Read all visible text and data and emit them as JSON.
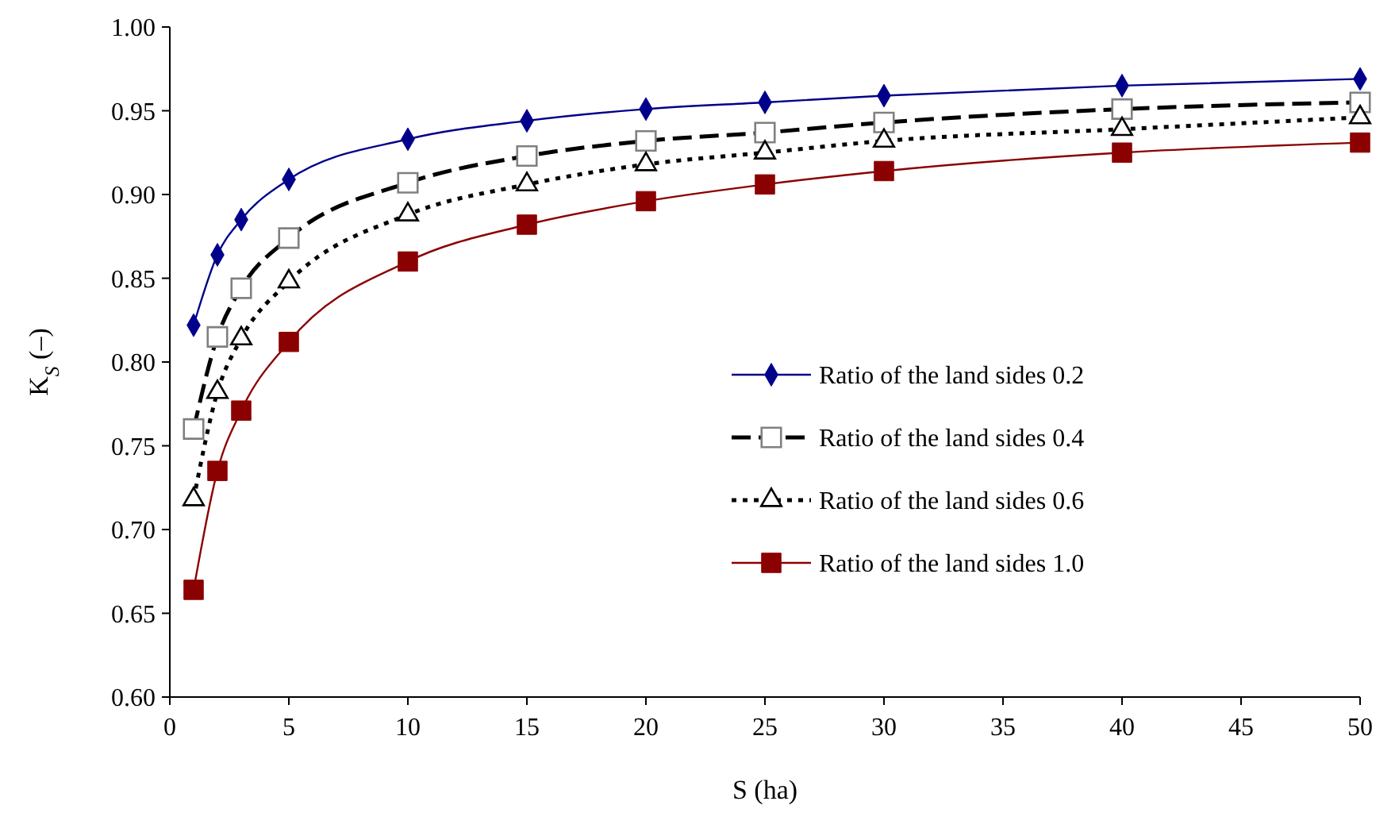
{
  "chart_data": {
    "type": "line",
    "xlabel": "S (ha)",
    "ylabel": "K$_{S}$ (–)",
    "x": [
      1,
      2,
      3,
      5,
      10,
      15,
      20,
      25,
      30,
      40,
      50
    ],
    "xlim": [
      0,
      50
    ],
    "xticks": [
      0,
      5,
      10,
      15,
      20,
      25,
      30,
      35,
      40,
      45,
      50
    ],
    "ylim": [
      0.6,
      1.0
    ],
    "yticks": [
      {
        "value": 0.6,
        "label": "0.60"
      },
      {
        "value": 0.65,
        "label": "0.65"
      },
      {
        "value": 0.7,
        "label": "0.70"
      },
      {
        "value": 0.75,
        "label": "0.75"
      },
      {
        "value": 0.8,
        "label": "0.80"
      },
      {
        "value": 0.85,
        "label": "0.85"
      },
      {
        "value": 0.9,
        "label": "0.90"
      },
      {
        "value": 0.95,
        "label": "0.95"
      },
      {
        "value": 1.0,
        "label": "1.00"
      }
    ],
    "grid": false,
    "legend": "right",
    "series": [
      {
        "name": "Ratio of the land sides 0.2",
        "color": "#00008b",
        "marker": "diamond",
        "line_style": "solid",
        "values": [
          0.822,
          0.864,
          0.885,
          0.909,
          0.933,
          0.944,
          0.951,
          0.955,
          0.959,
          0.965,
          0.969
        ]
      },
      {
        "name": "Ratio of the land sides 0.4",
        "color": "#000000",
        "marker": "square",
        "line_style": "dashed",
        "values": [
          0.76,
          0.815,
          0.844,
          0.874,
          0.907,
          0.923,
          0.932,
          0.937,
          0.943,
          0.951,
          0.955
        ]
      },
      {
        "name": "Ratio of the land sides 0.6",
        "color": "#000000",
        "marker": "triangle",
        "line_style": "dotted",
        "values": [
          0.718,
          0.782,
          0.814,
          0.848,
          0.888,
          0.906,
          0.918,
          0.925,
          0.932,
          0.939,
          0.946
        ]
      },
      {
        "name": "Ratio of the land sides 1.0",
        "color": "#8b0000",
        "marker": "square",
        "line_style": "solid",
        "values": [
          0.664,
          0.735,
          0.771,
          0.812,
          0.86,
          0.882,
          0.896,
          0.906,
          0.914,
          0.925,
          0.931
        ]
      }
    ]
  }
}
